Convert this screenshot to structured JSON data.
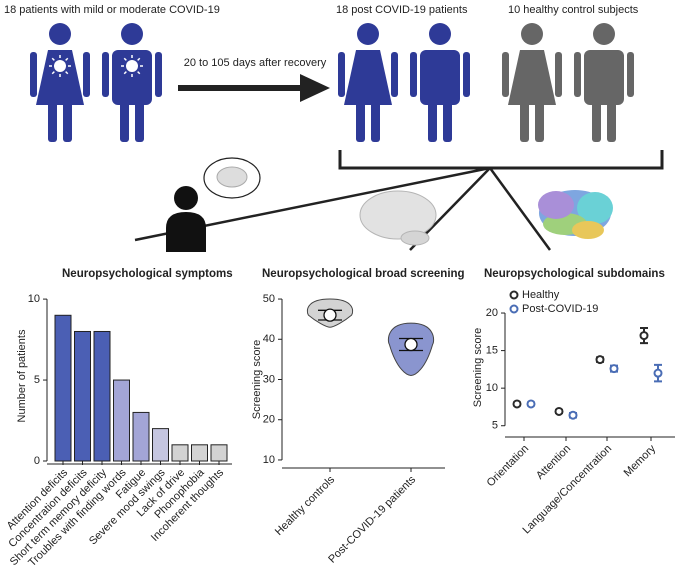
{
  "diagram": {
    "labels": [
      "18 patients with mild or moderate COVID-19",
      "20 to 105 days after recovery",
      "18 post COVID-19 patients",
      "10 healthy control subjects"
    ]
  },
  "chart_data": [
    {
      "type": "bar",
      "title": "Neuropsychological symptoms",
      "y_label": "Number of patients",
      "categories": [
        "Attention deficits",
        "Concentration deficits",
        "Short term memory deficity",
        "Troubles with finding words",
        "Fatigue",
        "Severe mood swings",
        "Lack of drive",
        "Phonophobia",
        "Incoherent thoughts"
      ],
      "values": [
        9,
        8,
        8,
        5,
        3,
        2,
        1,
        1,
        1
      ],
      "colors": [
        "#4b5fb4",
        "#4b5fb4",
        "#4b5fb4",
        "#a3a5d6",
        "#a3a5d6",
        "#c5c6e0",
        "#d3d3d3",
        "#d3d3d3",
        "#d3d3d3"
      ],
      "ylim": [
        0,
        10.5
      ],
      "yticks": [
        0,
        5,
        10
      ]
    },
    {
      "type": "violin",
      "title": "Neuropsychological broad screening",
      "y_label": "Screening score",
      "categories": [
        "Healthy controls",
        "Post-COVID-19 patients"
      ],
      "values": [
        46,
        38.7
      ],
      "errors": [
        1.2,
        1.5
      ],
      "ranges": [
        [
          43,
          50
        ],
        [
          31,
          44
        ]
      ],
      "colors": [
        "#d3d3d3",
        "#8a95cf"
      ],
      "ylim": [
        8,
        52
      ],
      "yticks": [
        10,
        20,
        30,
        40,
        50
      ]
    },
    {
      "type": "dot",
      "title": "Neuropsychological subdomains",
      "y_label": "Screening score",
      "categories": [
        "Orientation",
        "Attention",
        "Language/Concentration",
        "Memory"
      ],
      "series": [
        {
          "name": "Healthy",
          "color": "#2b2b2b",
          "values": [
            7.9,
            6.9,
            13.8,
            17.0
          ],
          "errors": [
            0.2,
            0.2,
            0.3,
            1.0
          ]
        },
        {
          "name": "Post-COVID-19",
          "color": "#4a6db5",
          "values": [
            7.9,
            6.4,
            12.6,
            12.0
          ],
          "errors": [
            0.2,
            0.3,
            0.4,
            1.1
          ]
        }
      ],
      "ylim": [
        3.5,
        22
      ],
      "yticks": [
        5,
        10,
        15,
        20
      ]
    }
  ]
}
